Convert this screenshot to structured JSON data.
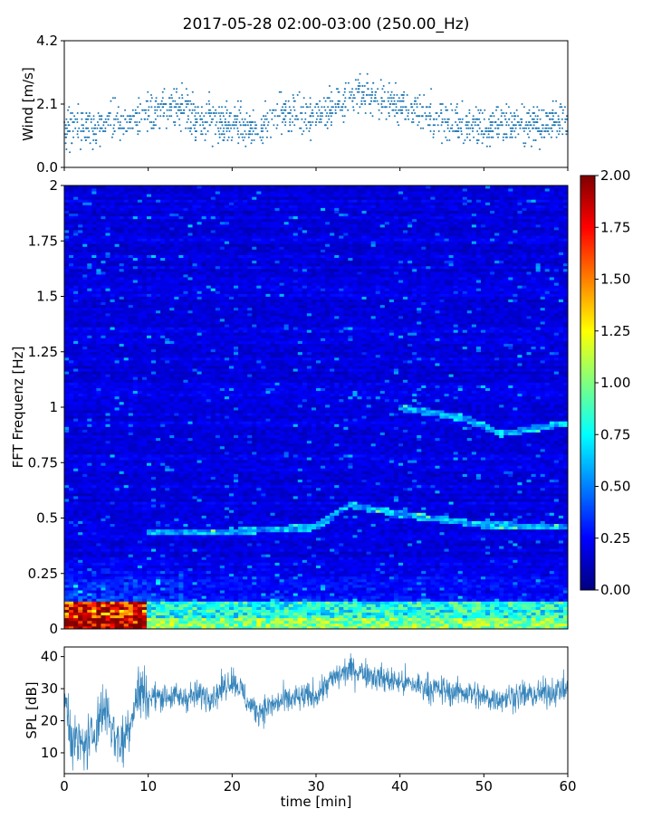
{
  "title": "2017-05-28 02:00-03:00 (250.00_Hz)",
  "chart_data": [
    {
      "panel": "wind",
      "type": "scatter",
      "ylabel": "Wind [m/s]",
      "xlim": [
        0,
        60
      ],
      "ylim": [
        0,
        4.2
      ],
      "yticks": [
        "0.0",
        "2.1",
        "4.2"
      ],
      "ytick_values": [
        0,
        2.1,
        4.2
      ],
      "xticks": [
        0,
        10,
        20,
        30,
        40,
        50,
        60
      ],
      "color": "#1f77b4",
      "series_trend": [
        [
          0,
          1.3
        ],
        [
          2,
          1.3
        ],
        [
          4,
          1.35
        ],
        [
          6,
          1.6
        ],
        [
          8,
          1.5
        ],
        [
          10,
          1.7
        ],
        [
          12,
          1.9
        ],
        [
          14,
          2.0
        ],
        [
          16,
          1.6
        ],
        [
          18,
          1.5
        ],
        [
          20,
          1.5
        ],
        [
          22,
          1.3
        ],
        [
          24,
          1.4
        ],
        [
          26,
          1.8
        ],
        [
          28,
          1.7
        ],
        [
          30,
          1.7
        ],
        [
          32,
          2.0
        ],
        [
          34,
          2.3
        ],
        [
          36,
          2.5
        ],
        [
          38,
          2.2
        ],
        [
          40,
          2.0
        ],
        [
          42,
          1.9
        ],
        [
          44,
          1.7
        ],
        [
          46,
          1.6
        ],
        [
          48,
          1.4
        ],
        [
          50,
          1.4
        ],
        [
          52,
          1.5
        ],
        [
          54,
          1.5
        ],
        [
          56,
          1.4
        ],
        [
          58,
          1.5
        ],
        [
          60,
          1.5
        ]
      ]
    },
    {
      "panel": "spectrogram",
      "type": "heatmap",
      "ylabel": "FFT Frequenz [Hz]",
      "xlim": [
        0,
        60
      ],
      "ylim": [
        0,
        2
      ],
      "yticks": [
        "0",
        "0.25",
        "0.5",
        "0.75",
        "1",
        "1.25",
        "1.5",
        "1.75",
        "2"
      ],
      "ytick_values": [
        0,
        0.25,
        0.5,
        0.75,
        1,
        1.25,
        1.5,
        1.75,
        2
      ],
      "colorscale": "jet",
      "clim": [
        0,
        2
      ],
      "colorbar_ticks": [
        "0.00",
        "0.25",
        "0.50",
        "0.75",
        "1.00",
        "1.25",
        "1.50",
        "1.75",
        "2.00"
      ],
      "colorbar_values": [
        0,
        0.25,
        0.5,
        0.75,
        1,
        1.25,
        1.5,
        1.75,
        2
      ],
      "ridges": [
        [
          [
            10,
            0.44
          ],
          [
            20,
            0.44
          ],
          [
            30,
            0.46
          ],
          [
            34,
            0.56
          ],
          [
            40,
            0.52
          ],
          [
            50,
            0.47
          ],
          [
            60,
            0.46
          ]
        ],
        [
          [
            40,
            1.0
          ],
          [
            48,
            0.95
          ],
          [
            52,
            0.88
          ],
          [
            60,
            0.93
          ]
        ]
      ]
    },
    {
      "panel": "spl",
      "type": "line",
      "ylabel": "SPL [dB]",
      "xlabel": "time [min]",
      "xlim": [
        0,
        60
      ],
      "ylim": [
        3.5,
        43
      ],
      "yticks": [
        "10",
        "20",
        "30",
        "40"
      ],
      "ytick_values": [
        10,
        20,
        30,
        40
      ],
      "xticks": [
        "0",
        "10",
        "20",
        "30",
        "40",
        "50",
        "60"
      ],
      "xtick_values": [
        0,
        10,
        20,
        30,
        40,
        50,
        60
      ],
      "color": "#1f77b4",
      "series": [
        [
          0,
          28
        ],
        [
          1,
          14
        ],
        [
          2,
          12
        ],
        [
          3,
          13
        ],
        [
          4,
          20
        ],
        [
          5,
          25
        ],
        [
          6,
          15
        ],
        [
          7,
          13
        ],
        [
          8,
          22
        ],
        [
          9,
          30
        ],
        [
          10,
          27
        ],
        [
          12,
          28
        ],
        [
          14,
          27
        ],
        [
          16,
          28
        ],
        [
          18,
          28
        ],
        [
          20,
          33
        ],
        [
          21,
          30
        ],
        [
          22,
          25
        ],
        [
          23,
          23
        ],
        [
          24,
          24
        ],
        [
          26,
          26
        ],
        [
          28,
          27
        ],
        [
          30,
          28
        ],
        [
          32,
          33
        ],
        [
          34,
          36
        ],
        [
          36,
          35
        ],
        [
          38,
          33
        ],
        [
          40,
          32
        ],
        [
          42,
          31
        ],
        [
          44,
          30
        ],
        [
          46,
          29
        ],
        [
          48,
          29
        ],
        [
          50,
          27
        ],
        [
          52,
          27
        ],
        [
          54,
          28
        ],
        [
          56,
          28
        ],
        [
          58,
          29
        ],
        [
          60,
          30
        ]
      ]
    }
  ]
}
